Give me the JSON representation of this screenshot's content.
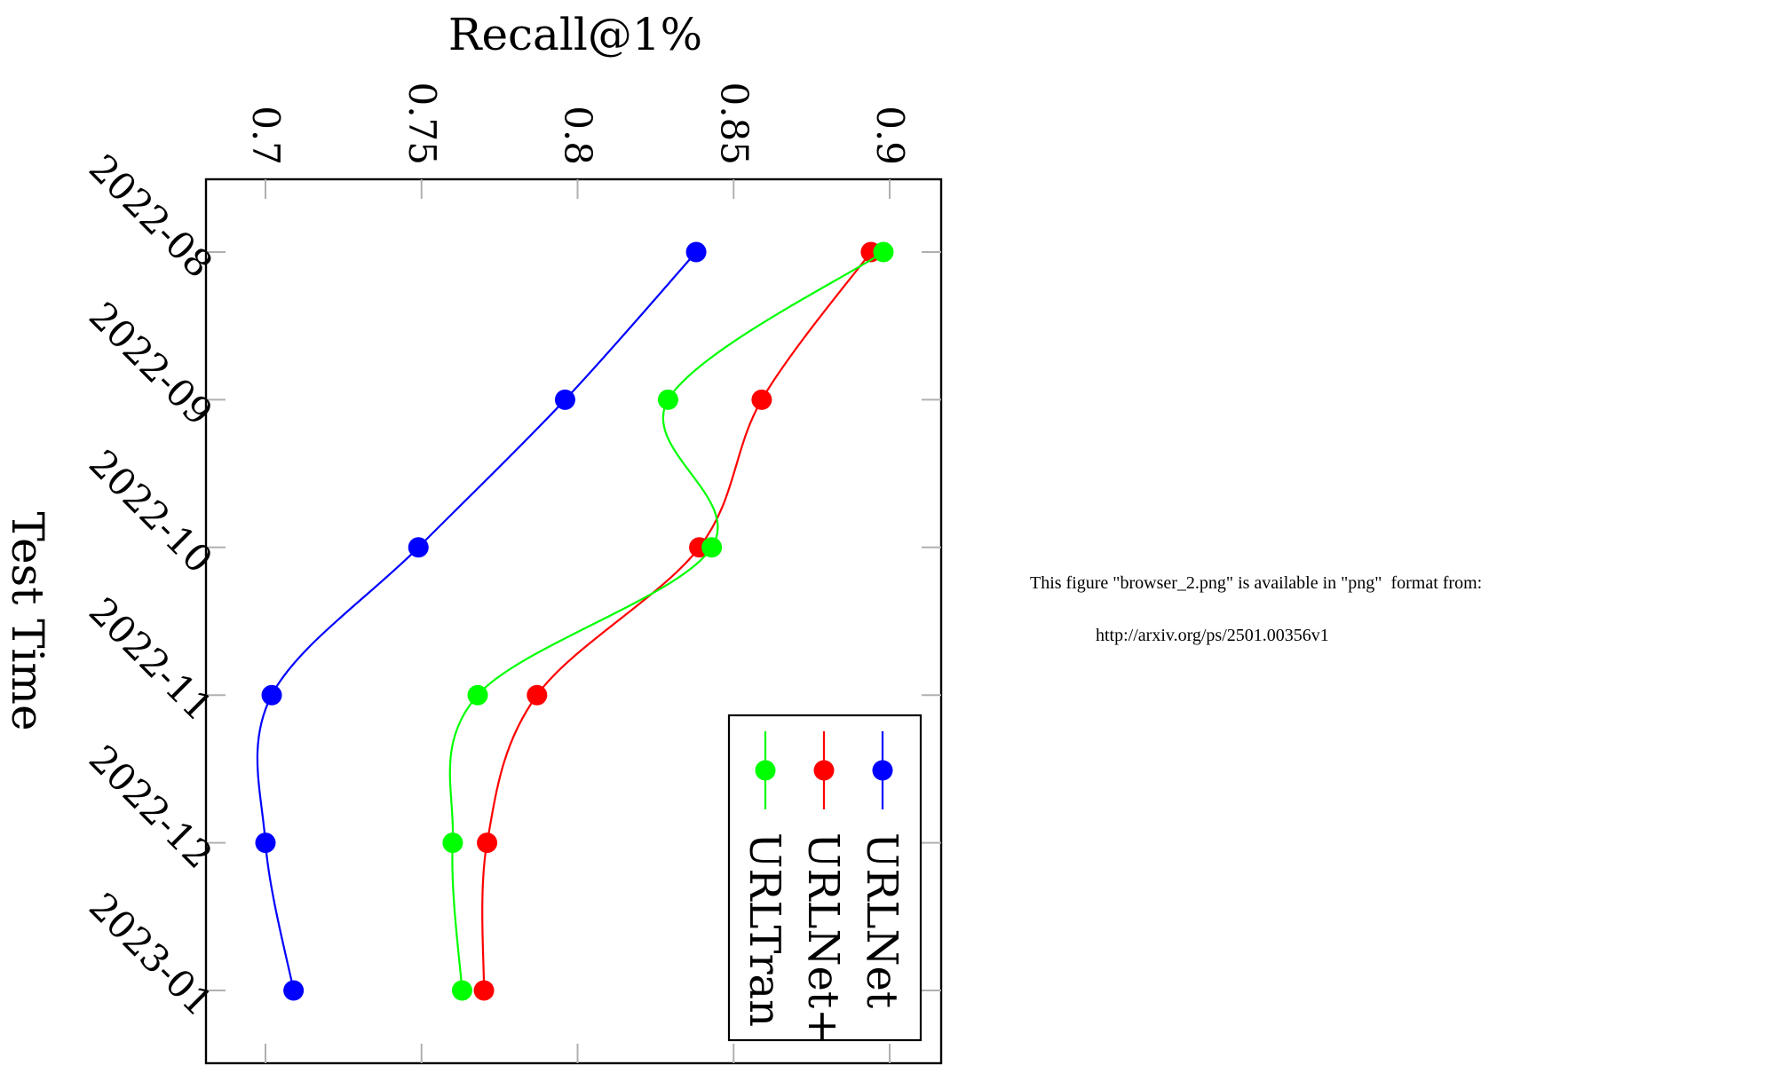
{
  "chart_data": {
    "type": "line",
    "title": "",
    "xlabel": "Test Time",
    "ylabel": "Recall@1%",
    "x_categories": [
      "2022-08",
      "2022-09",
      "2022-10",
      "2022-11",
      "2022-12",
      "2023-01"
    ],
    "ylim": [
      0.68,
      0.915
    ],
    "y_ticks": [
      0.7,
      0.75,
      0.8,
      0.85,
      0.9
    ],
    "y_tick_labels": [
      "0.7",
      "0.75",
      "0.8",
      "0.85",
      "0.9"
    ],
    "orientation": "rotated-90-clockwise",
    "grid": false,
    "legend_position": "bottom-right",
    "series": [
      {
        "name": "URLNet",
        "color": "#0000ff",
        "values": [
          0.838,
          0.796,
          0.749,
          0.702,
          0.7,
          0.709
        ]
      },
      {
        "name": "URLNet+",
        "color": "#ff0000",
        "values": [
          0.894,
          0.859,
          0.839,
          0.787,
          0.771,
          0.77
        ]
      },
      {
        "name": "URLTran",
        "color": "#00ff00",
        "values": [
          0.898,
          0.829,
          0.843,
          0.768,
          0.76,
          0.763
        ]
      }
    ]
  },
  "notice": {
    "line1": "This figure \"browser_2.png\" is available in \"png\"  format from:",
    "line2": "http://arxiv.org/ps/2501.00356v1"
  }
}
